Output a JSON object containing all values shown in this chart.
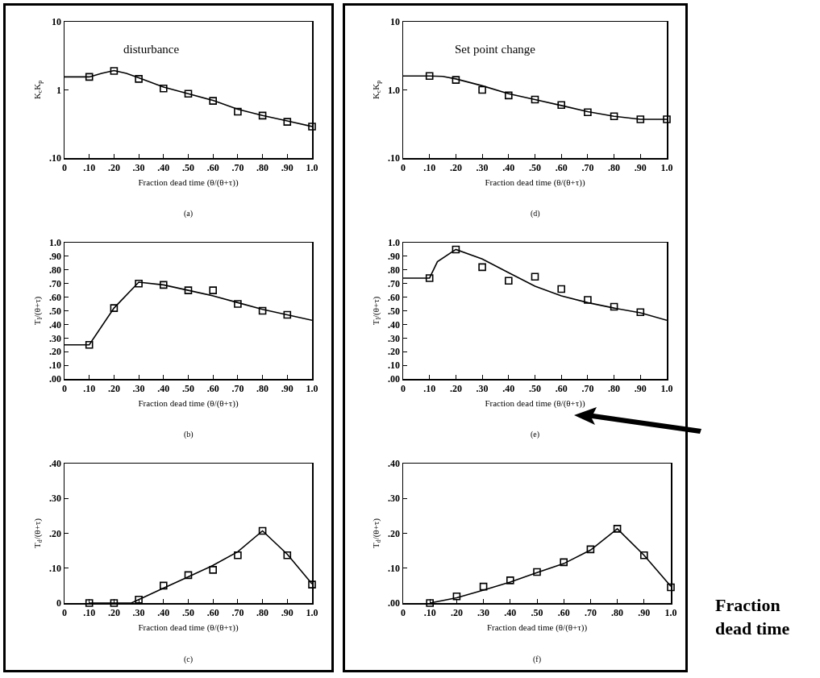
{
  "chart_data": [
    {
      "type": "line",
      "title": "disturbance",
      "xlabel": "Fraction dead time (θ/(θ+τ))",
      "ylabel": "K$_{c}$K$_{p}$",
      "annotations": [
        "(a)"
      ],
      "log": "y",
      "grid": false,
      "xlim": [
        0,
        1
      ],
      "xticks": [
        {
          "value": 0,
          "label": "0"
        },
        {
          "value": 0.1,
          "label": ".10"
        },
        {
          "value": 0.2,
          "label": ".20"
        },
        {
          "value": 0.3,
          "label": ".30"
        },
        {
          "value": 0.4,
          "label": ".40"
        },
        {
          "value": 0.5,
          "label": ".50"
        },
        {
          "value": 0.6,
          "label": ".60"
        },
        {
          "value": 0.7,
          "label": ".70"
        },
        {
          "value": 0.8,
          "label": ".80"
        },
        {
          "value": 0.9,
          "label": ".90"
        },
        {
          "value": 1,
          "label": "1.0"
        }
      ],
      "ylim": [
        0.1,
        10
      ],
      "yticks": [
        {
          "value": 0.1,
          "label": ".10"
        },
        {
          "value": 1,
          "label": "1"
        },
        {
          "value": 10,
          "label": "10"
        }
      ],
      "series": [
        {
          "type": "scatter",
          "marker": "square",
          "color": "#000000",
          "x": [
            0.1,
            0.2,
            0.3,
            0.4,
            0.5,
            0.6,
            0.7,
            0.8,
            0.9,
            1.0
          ],
          "values": [
            1.55,
            1.9,
            1.45,
            1.05,
            0.88,
            0.69,
            0.48,
            0.42,
            0.34,
            0.29
          ]
        },
        {
          "color": "#000000",
          "x": [
            0,
            0.1,
            0.15,
            0.2,
            0.25,
            0.3,
            0.4,
            0.5,
            0.6,
            0.7,
            0.8,
            0.9,
            1.0
          ],
          "values": [
            1.55,
            1.55,
            1.75,
            1.92,
            1.75,
            1.5,
            1.1,
            0.88,
            0.7,
            0.52,
            0.42,
            0.35,
            0.29
          ]
        }
      ]
    },
    {
      "type": "line",
      "title": "Set point change",
      "xlabel": "Fraction dead time (θ/(θ+τ))",
      "ylabel": "K$_{c}$K$_{p}$",
      "annotations": [
        "(d)"
      ],
      "log": "y",
      "grid": false,
      "xlim": [
        0,
        1
      ],
      "xticks": [
        {
          "value": 0,
          "label": "0"
        },
        {
          "value": 0.1,
          "label": ".10"
        },
        {
          "value": 0.2,
          "label": ".20"
        },
        {
          "value": 0.3,
          "label": ".30"
        },
        {
          "value": 0.4,
          "label": ".40"
        },
        {
          "value": 0.5,
          "label": ".50"
        },
        {
          "value": 0.6,
          "label": ".60"
        },
        {
          "value": 0.7,
          "label": ".70"
        },
        {
          "value": 0.8,
          "label": ".80"
        },
        {
          "value": 0.9,
          "label": ".90"
        },
        {
          "value": 1,
          "label": "1.0"
        }
      ],
      "ylim": [
        0.1,
        10
      ],
      "yticks": [
        {
          "value": 0.1,
          "label": ".10"
        },
        {
          "value": 1,
          "label": "1.0"
        },
        {
          "value": 10,
          "label": "10"
        }
      ],
      "series": [
        {
          "type": "scatter",
          "marker": "square",
          "color": "#000000",
          "x": [
            0.1,
            0.2,
            0.3,
            0.4,
            0.5,
            0.6,
            0.7,
            0.8,
            0.9,
            1.0
          ],
          "values": [
            1.6,
            1.4,
            1.0,
            0.83,
            0.72,
            0.6,
            0.47,
            0.41,
            0.37,
            0.37
          ]
        },
        {
          "color": "#000000",
          "x": [
            0,
            0.1,
            0.15,
            0.2,
            0.3,
            0.4,
            0.5,
            0.6,
            0.7,
            0.8,
            0.9,
            1.0
          ],
          "values": [
            1.6,
            1.6,
            1.58,
            1.45,
            1.15,
            0.88,
            0.72,
            0.59,
            0.48,
            0.41,
            0.37,
            0.37
          ]
        }
      ]
    },
    {
      "type": "line",
      "xlabel": "Fraction dead time (θ/(θ+τ))",
      "ylabel": "T$_{I}$/(θ+τ)",
      "annotations": [
        "(b)"
      ],
      "grid": false,
      "xlim": [
        0,
        1
      ],
      "xticks": [
        {
          "value": 0,
          "label": "0"
        },
        {
          "value": 0.1,
          "label": ".10"
        },
        {
          "value": 0.2,
          "label": ".20"
        },
        {
          "value": 0.3,
          "label": ".30"
        },
        {
          "value": 0.4,
          "label": ".40"
        },
        {
          "value": 0.5,
          "label": ".50"
        },
        {
          "value": 0.6,
          "label": ".60"
        },
        {
          "value": 0.7,
          "label": ".70"
        },
        {
          "value": 0.8,
          "label": ".80"
        },
        {
          "value": 0.9,
          "label": ".90"
        },
        {
          "value": 1,
          "label": "1.0"
        }
      ],
      "ylim": [
        0,
        1
      ],
      "yticks": [
        {
          "value": 0,
          "label": ".00"
        },
        {
          "value": 0.1,
          "label": ".10"
        },
        {
          "value": 0.2,
          "label": ".20"
        },
        {
          "value": 0.3,
          "label": ".30"
        },
        {
          "value": 0.4,
          "label": ".40"
        },
        {
          "value": 0.5,
          "label": ".50"
        },
        {
          "value": 0.6,
          "label": ".60"
        },
        {
          "value": 0.7,
          "label": ".70"
        },
        {
          "value": 0.8,
          "label": ".80"
        },
        {
          "value": 0.9,
          "label": ".90"
        },
        {
          "value": 1,
          "label": "1.0"
        }
      ],
      "series": [
        {
          "type": "scatter",
          "marker": "square",
          "color": "#000000",
          "x": [
            0.1,
            0.2,
            0.3,
            0.4,
            0.5,
            0.6,
            0.7,
            0.8,
            0.9
          ],
          "values": [
            0.25,
            0.52,
            0.7,
            0.69,
            0.65,
            0.65,
            0.55,
            0.5,
            0.47
          ]
        },
        {
          "color": "#000000",
          "x": [
            0,
            0.1,
            0.2,
            0.3,
            0.4,
            0.5,
            0.6,
            0.7,
            0.8,
            0.9,
            1.0
          ],
          "values": [
            0.25,
            0.25,
            0.52,
            0.71,
            0.69,
            0.65,
            0.61,
            0.56,
            0.51,
            0.47,
            0.43
          ]
        }
      ]
    },
    {
      "type": "line",
      "xlabel": "Fraction dead time (θ/(θ+τ))",
      "ylabel": "T$_{I}$/(θ+τ)",
      "annotations": [
        "(e)"
      ],
      "grid": false,
      "xlim": [
        0,
        1
      ],
      "xticks": [
        {
          "value": 0,
          "label": "0"
        },
        {
          "value": 0.1,
          "label": ".10"
        },
        {
          "value": 0.2,
          "label": ".20"
        },
        {
          "value": 0.3,
          "label": ".30"
        },
        {
          "value": 0.4,
          "label": ".40"
        },
        {
          "value": 0.5,
          "label": ".50"
        },
        {
          "value": 0.6,
          "label": ".60"
        },
        {
          "value": 0.7,
          "label": ".70"
        },
        {
          "value": 0.8,
          "label": ".80"
        },
        {
          "value": 0.9,
          "label": ".90"
        },
        {
          "value": 1,
          "label": "1.0"
        }
      ],
      "ylim": [
        0,
        1
      ],
      "yticks": [
        {
          "value": 0,
          "label": ".00"
        },
        {
          "value": 0.1,
          "label": ".10"
        },
        {
          "value": 0.2,
          "label": ".20"
        },
        {
          "value": 0.3,
          "label": ".30"
        },
        {
          "value": 0.4,
          "label": ".40"
        },
        {
          "value": 0.5,
          "label": ".50"
        },
        {
          "value": 0.6,
          "label": ".60"
        },
        {
          "value": 0.7,
          "label": ".70"
        },
        {
          "value": 0.8,
          "label": ".80"
        },
        {
          "value": 0.9,
          "label": ".90"
        },
        {
          "value": 1,
          "label": "1.0"
        }
      ],
      "series": [
        {
          "type": "scatter",
          "marker": "square",
          "color": "#000000",
          "x": [
            0.1,
            0.2,
            0.3,
            0.4,
            0.5,
            0.6,
            0.7,
            0.8,
            0.9
          ],
          "values": [
            0.74,
            0.95,
            0.82,
            0.72,
            0.75,
            0.66,
            0.58,
            0.53,
            0.49
          ]
        },
        {
          "color": "#000000",
          "x": [
            0,
            0.1,
            0.13,
            0.2,
            0.3,
            0.4,
            0.5,
            0.6,
            0.7,
            0.8,
            0.9,
            1.0
          ],
          "values": [
            0.74,
            0.74,
            0.86,
            0.95,
            0.88,
            0.78,
            0.68,
            0.61,
            0.56,
            0.52,
            0.485,
            0.43
          ]
        }
      ]
    },
    {
      "type": "line",
      "xlabel": "Fraction dead time (θ/(θ+τ))",
      "ylabel": "T$_{d}$/(θ+τ)",
      "annotations": [
        "(c)"
      ],
      "grid": false,
      "xlim": [
        0,
        1
      ],
      "xticks": [
        {
          "value": 0,
          "label": "0"
        },
        {
          "value": 0.1,
          "label": ".10"
        },
        {
          "value": 0.2,
          "label": ".20"
        },
        {
          "value": 0.3,
          "label": ".30"
        },
        {
          "value": 0.4,
          "label": ".40"
        },
        {
          "value": 0.5,
          "label": ".50"
        },
        {
          "value": 0.6,
          "label": ".60"
        },
        {
          "value": 0.7,
          "label": ".70"
        },
        {
          "value": 0.8,
          "label": ".80"
        },
        {
          "value": 0.9,
          "label": ".90"
        },
        {
          "value": 1,
          "label": "1.0"
        }
      ],
      "ylim": [
        0,
        0.4
      ],
      "yticks": [
        {
          "value": 0,
          "label": "0"
        },
        {
          "value": 0.1,
          "label": ".10"
        },
        {
          "value": 0.2,
          "label": ".20"
        },
        {
          "value": 0.3,
          "label": ".30"
        },
        {
          "value": 0.4,
          "label": ".40"
        }
      ],
      "series": [
        {
          "type": "scatter",
          "marker": "square",
          "color": "#000000",
          "x": [
            0.1,
            0.2,
            0.3,
            0.4,
            0.5,
            0.6,
            0.7,
            0.8,
            0.9,
            1.0
          ],
          "values": [
            0,
            0,
            0.01,
            0.05,
            0.08,
            0.095,
            0.137,
            0.207,
            0.137,
            0.053
          ]
        },
        {
          "color": "#000000",
          "x": [
            0.1,
            0.2,
            0.27,
            0.3,
            0.4,
            0.5,
            0.6,
            0.7,
            0.8,
            0.9,
            1.0
          ],
          "values": [
            0,
            0,
            0,
            0.01,
            0.043,
            0.075,
            0.108,
            0.147,
            0.207,
            0.14,
            0.055
          ]
        }
      ]
    },
    {
      "type": "line",
      "xlabel": "Fraction dead time (θ/(θ+τ))",
      "ylabel": "T$_{d}$/(θ+τ)",
      "annotations": [
        "(f)",
        "Fraction dead time"
      ],
      "grid": false,
      "xlim": [
        0,
        1
      ],
      "xticks": [
        {
          "value": 0,
          "label": "0"
        },
        {
          "value": 0.1,
          "label": ".10"
        },
        {
          "value": 0.2,
          "label": ".20"
        },
        {
          "value": 0.3,
          "label": ".30"
        },
        {
          "value": 0.4,
          "label": ".40"
        },
        {
          "value": 0.5,
          "label": ".50"
        },
        {
          "value": 0.6,
          "label": ".60"
        },
        {
          "value": 0.7,
          "label": ".70"
        },
        {
          "value": 0.8,
          "label": ".80"
        },
        {
          "value": 0.9,
          "label": ".90"
        },
        {
          "value": 1,
          "label": "1.0"
        }
      ],
      "ylim": [
        0,
        0.4
      ],
      "yticks": [
        {
          "value": 0,
          "label": ".00"
        },
        {
          "value": 0.1,
          "label": ".10"
        },
        {
          "value": 0.2,
          "label": ".20"
        },
        {
          "value": 0.3,
          "label": ".30"
        },
        {
          "value": 0.4,
          "label": ".40"
        }
      ],
      "series": [
        {
          "type": "scatter",
          "marker": "square",
          "color": "#000000",
          "x": [
            0.1,
            0.2,
            0.3,
            0.4,
            0.5,
            0.6,
            0.7,
            0.8,
            0.9,
            1.0
          ],
          "values": [
            0,
            0.019,
            0.047,
            0.065,
            0.089,
            0.117,
            0.154,
            0.213,
            0.137,
            0.045
          ]
        },
        {
          "color": "#000000",
          "x": [
            0.1,
            0.2,
            0.3,
            0.4,
            0.5,
            0.6,
            0.7,
            0.8,
            0.9,
            1.0
          ],
          "values": [
            0,
            0.015,
            0.037,
            0.06,
            0.087,
            0.113,
            0.152,
            0.213,
            0.137,
            0.048
          ]
        }
      ]
    }
  ]
}
